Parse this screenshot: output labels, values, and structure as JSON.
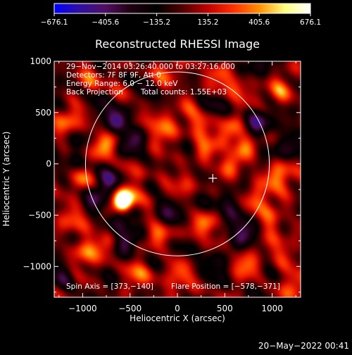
{
  "chart_data": {
    "type": "heatmap",
    "title": "Reconstructed RHESSI Image",
    "xlabel": "Heliocentric X (arcsec)",
    "ylabel": "Heliocentric Y (arcsec)",
    "xlim": [
      -1300,
      1300
    ],
    "ylim": [
      -1300,
      1000
    ],
    "x_ticks": [
      -1000,
      -500,
      0,
      500,
      1000
    ],
    "y_ticks": [
      -1000,
      -500,
      0,
      500,
      1000
    ],
    "x_tick_labels": [
      "−1000",
      "−500",
      "0",
      "500",
      "1000"
    ],
    "y_tick_labels": [
      "−1000",
      "−500",
      "0",
      "500",
      "1000"
    ],
    "colorbar": {
      "min": -676.1,
      "max": 676.1,
      "tick_values": [
        -676.1,
        -405.6,
        -135.2,
        135.2,
        405.6,
        676.1
      ],
      "tick_labels": [
        "−676.1",
        "−405.6",
        "−135.2",
        "135.2",
        "405.6",
        "676.1"
      ],
      "colors": [
        "#0000ff",
        "#3010a0",
        "#501060",
        "#200010",
        "#000000",
        "#500000",
        "#c00000",
        "#ff3000",
        "#ff9000",
        "#ffff80",
        "#ffffff"
      ]
    },
    "annotations": [
      "29−Nov−2014 03:26:40.000 to 03:27:16.000",
      "Detectors: 7F 8F 9F, Att 0",
      "Energy Range: 6.0 − 12.0 keV",
      "Back Projection",
      "Total counts: 1.55E+03",
      "Spin Axis = [373,−140]",
      "Flare Position = [−578,−371]"
    ],
    "solar_limb": {
      "center": [
        0,
        0
      ],
      "radius_arcsec": 970
    },
    "spin_axis_marker": [
      373,
      -140
    ],
    "bright_source": {
      "x": -578,
      "y": -371,
      "value": 676.1
    },
    "blobs": [
      {
        "x": -578,
        "y": -371,
        "v": 676
      },
      {
        "x": -560,
        "y": -340,
        "v": 420
      },
      {
        "x": -430,
        "y": -320,
        "v": 380
      },
      {
        "x": -420,
        "y": -150,
        "v": 300
      },
      {
        "x": -690,
        "y": -170,
        "v": -420
      },
      {
        "x": -470,
        "y": -470,
        "v": -360
      },
      {
        "x": -330,
        "y": -200,
        "v": -300
      },
      {
        "x": -440,
        "y": 180,
        "v": -420
      },
      {
        "x": -590,
        "y": 420,
        "v": -380
      },
      {
        "x": -240,
        "y": 130,
        "v": 260
      },
      {
        "x": -380,
        "y": 370,
        "v": 230
      },
      {
        "x": -560,
        "y": 700,
        "v": 300
      },
      {
        "x": -380,
        "y": 700,
        "v": -320
      },
      {
        "x": -950,
        "y": 850,
        "v": 320
      },
      {
        "x": -1150,
        "y": 430,
        "v": 300
      },
      {
        "x": -1100,
        "y": 0,
        "v": -300
      },
      {
        "x": -1000,
        "y": -150,
        "v": 440
      },
      {
        "x": -1150,
        "y": -500,
        "v": 320
      },
      {
        "x": -1000,
        "y": -850,
        "v": 350
      },
      {
        "x": -750,
        "y": -740,
        "v": 280
      },
      {
        "x": -600,
        "y": -720,
        "v": -320
      },
      {
        "x": -200,
        "y": -650,
        "v": 230
      },
      {
        "x": -80,
        "y": -430,
        "v": -280
      },
      {
        "x": 60,
        "y": -250,
        "v": 260
      },
      {
        "x": 130,
        "y": 20,
        "v": -200
      },
      {
        "x": 250,
        "y": 300,
        "v": 280
      },
      {
        "x": 100,
        "y": 580,
        "v": 240
      },
      {
        "x": 380,
        "y": 600,
        "v": -260
      },
      {
        "x": 600,
        "y": 750,
        "v": 330
      },
      {
        "x": 850,
        "y": 420,
        "v": -350
      },
      {
        "x": 700,
        "y": 200,
        "v": 330
      },
      {
        "x": 1100,
        "y": 700,
        "v": 360
      },
      {
        "x": 1150,
        "y": 200,
        "v": -300
      },
      {
        "x": 1050,
        "y": -100,
        "v": 380
      },
      {
        "x": 820,
        "y": -300,
        "v": 300
      },
      {
        "x": 500,
        "y": -350,
        "v": -300
      },
      {
        "x": 330,
        "y": -600,
        "v": 330
      },
      {
        "x": 700,
        "y": -620,
        "v": -360
      },
      {
        "x": 1000,
        "y": -550,
        "v": 330
      },
      {
        "x": 1150,
        "y": -900,
        "v": 300
      },
      {
        "x": 750,
        "y": -1000,
        "v": 280
      },
      {
        "x": 350,
        "y": -950,
        "v": -280
      },
      {
        "x": 0,
        "y": -1050,
        "v": 300
      },
      {
        "x": -380,
        "y": -1100,
        "v": 320
      },
      {
        "x": 400,
        "y": 900,
        "v": 260
      },
      {
        "x": -100,
        "y": 850,
        "v": 250
      },
      {
        "x": 250,
        "y": 100,
        "v": 280
      },
      {
        "x": -1200,
        "y": -1100,
        "v": -320
      },
      {
        "x": 1200,
        "y": -1200,
        "v": 300
      },
      {
        "x": -850,
        "y": -350,
        "v": -320
      },
      {
        "x": -780,
        "y": 150,
        "v": 320
      },
      {
        "x": 500,
        "y": -50,
        "v": 290
      },
      {
        "x": -150,
        "y": 400,
        "v": 280
      },
      {
        "x": 550,
        "y": 400,
        "v": 250
      },
      {
        "x": -800,
        "y": 600,
        "v": -280
      },
      {
        "x": 900,
        "y": 950,
        "v": -260
      }
    ]
  },
  "footer": {
    "timestamp": "20−May−2022 00:41"
  }
}
